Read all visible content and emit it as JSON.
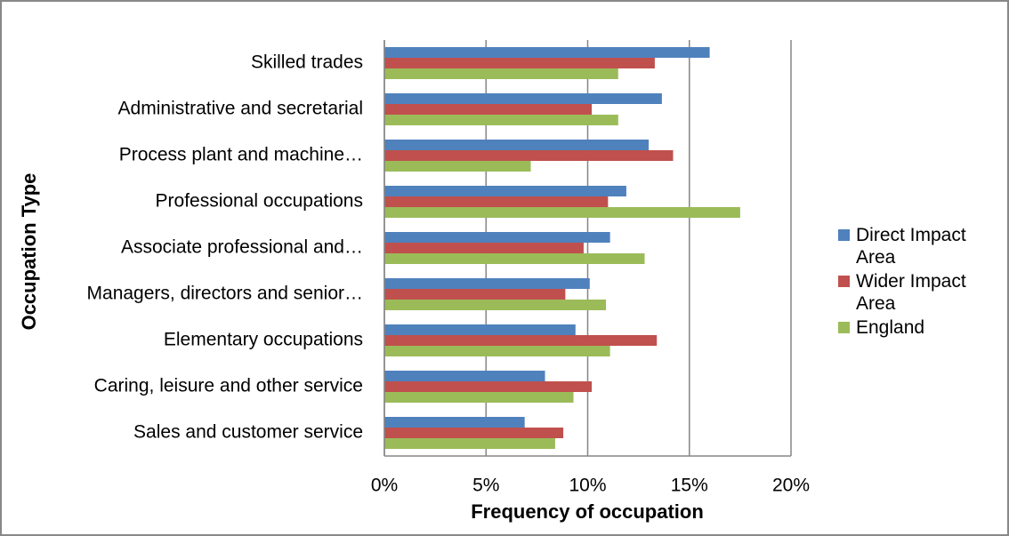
{
  "chart_data": {
    "type": "bar",
    "orientation": "horizontal",
    "xlabel": "Frequency of occupation",
    "ylabel": "Occupation Type",
    "categories": [
      "Skilled trades",
      "Administrative and secretarial",
      "Process plant and machine…",
      "Professional occupations",
      "Associate professional and…",
      "Managers, directors and senior…",
      "Elementary occupations",
      "Caring, leisure and other service",
      "Sales and customer service"
    ],
    "series": [
      {
        "name": "Direct Impact Area",
        "color": "#4f81bd",
        "values": [
          16.0,
          13.65,
          13.0,
          11.9,
          11.1,
          10.1,
          9.4,
          7.9,
          6.9
        ]
      },
      {
        "name": "Wider Impact Area",
        "color": "#c0504d",
        "values": [
          13.3,
          10.2,
          14.2,
          11.0,
          9.8,
          8.9,
          13.4,
          10.2,
          8.8
        ]
      },
      {
        "name": "England",
        "color": "#9bbb59",
        "values": [
          11.5,
          11.5,
          7.2,
          17.5,
          12.8,
          10.9,
          11.1,
          9.3,
          8.4
        ]
      }
    ],
    "xlim": [
      0,
      20
    ],
    "xticks": [
      {
        "value": 0,
        "label": "0%"
      },
      {
        "value": 5,
        "label": "5%"
      },
      {
        "value": 10,
        "label": "10%"
      },
      {
        "value": 15,
        "label": "15%"
      },
      {
        "value": 20,
        "label": "20%"
      }
    ],
    "grid": true,
    "legend": "right"
  }
}
